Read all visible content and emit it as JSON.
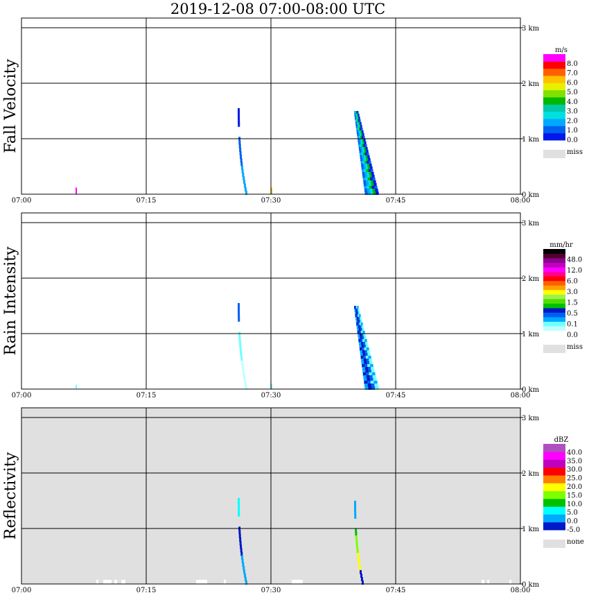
{
  "title": "2019-12-08   07:00-08:00 UTC",
  "chart_data": [
    {
      "type": "heatmap",
      "ylabel": "Fall Velocity",
      "x_ticks": [
        "07:00",
        "07:15",
        "07:30",
        "07:45",
        "08:00"
      ],
      "y_ticks": [
        "0 km",
        "1 km",
        "2 km",
        "3 km"
      ],
      "ylim_km": [
        0,
        3
      ],
      "background": "#ffffff",
      "colorbar": {
        "unit": "m/s",
        "colors": [
          "#0018e8",
          "#0060f0",
          "#00a8ff",
          "#00e0e0",
          "#00c8a8",
          "#00b800",
          "#80e000",
          "#e8f000",
          "#ffc000",
          "#ff6000",
          "#ff0000",
          "#ff00ff"
        ],
        "labels": [
          "0.0",
          "1.0",
          "2.0",
          "3.0",
          "4.0",
          "5.0",
          "6.0",
          "7.0",
          "8.0"
        ],
        "miss_label": "miss"
      },
      "echoes": [
        {
          "time": "07:06.5",
          "top_km": 0.12,
          "bottom_km": 0.0,
          "color": "#ff00ff"
        },
        {
          "time": "07:26",
          "top_km": 1.55,
          "bottom_km": 0.0,
          "colors": [
            "#0018e8",
            "#0060f0",
            "#00a8ff"
          ]
        },
        {
          "time": "07:30",
          "top_km": 0.12,
          "bottom_km": 0.0,
          "color": "#ffc000"
        },
        {
          "time": "07:40",
          "top_km": 1.5,
          "bottom_km": 0.0,
          "colors": [
            "#0060f0",
            "#00a8ff",
            "#00e0e0",
            "#00b800",
            "#0018e8"
          ]
        }
      ]
    },
    {
      "type": "heatmap",
      "ylabel": "Rain Intensity",
      "x_ticks": [
        "07:00",
        "07:15",
        "07:30",
        "07:45",
        "08:00"
      ],
      "y_ticks": [
        "0 km",
        "1 km",
        "2 km",
        "3 km"
      ],
      "ylim_km": [
        0,
        3
      ],
      "background": "#ffffff",
      "colorbar": {
        "unit": "mm/hr",
        "colors": [
          "#ffffff",
          "#c0ffff",
          "#70ffff",
          "#00a8ff",
          "#0060f0",
          "#0018c8",
          "#00c000",
          "#50e000",
          "#a0f050",
          "#ffff00",
          "#ffa000",
          "#ff6000",
          "#ff0000",
          "#ff0090",
          "#ff00ff",
          "#c000c0",
          "#900090",
          "#500030",
          "#000000"
        ],
        "labels": [
          "0.0",
          "0.1",
          "0.5",
          "1.5",
          "3.0",
          "6.0",
          "12.0",
          "48.0"
        ],
        "miss_label": "miss"
      },
      "echoes": [
        {
          "time": "07:06.5",
          "top_km": 0.08,
          "bottom_km": 0.0,
          "color": "#70ffff"
        },
        {
          "time": "07:26",
          "top_km": 1.55,
          "bottom_km": 0.0,
          "colors": [
            "#0060f0",
            "#70ffff",
            "#c0ffff"
          ]
        },
        {
          "time": "07:30",
          "top_km": 0.1,
          "bottom_km": 0.0,
          "color": "#70ffff"
        },
        {
          "time": "07:40",
          "top_km": 1.5,
          "bottom_km": 0.0,
          "colors": [
            "#00a8ff",
            "#0018c8",
            "#0060f0",
            "#70ffff"
          ]
        }
      ]
    },
    {
      "type": "heatmap",
      "ylabel": "Reflectivity",
      "x_ticks": [
        "07:00",
        "07:15",
        "07:30",
        "07:45",
        "08:00"
      ],
      "y_ticks": [
        "0 km",
        "1 km",
        "2 km",
        "3 km"
      ],
      "ylim_km": [
        0,
        3
      ],
      "background": "#e0e0e0",
      "colorbar": {
        "unit": "dBZ",
        "colors": [
          "#0018c8",
          "#00a8ff",
          "#00ffff",
          "#00c000",
          "#80ff00",
          "#ffff00",
          "#ff8000",
          "#ff0000",
          "#c000c0",
          "#ff00ff",
          "#b050c0"
        ],
        "labels": [
          "-5.0",
          "0.0",
          "5.0",
          "10.0",
          "15.0",
          "20.0",
          "25.0",
          "30.0",
          "35.0",
          "40.0"
        ],
        "miss_label": "none"
      },
      "echoes": [
        {
          "time": "07:26",
          "top_km": 1.55,
          "bottom_km": 0.0,
          "colors": [
            "#00ffff",
            "#0018c8",
            "#00a8ff"
          ]
        },
        {
          "time": "07:40",
          "top_km": 1.5,
          "bottom_km": 0.0,
          "colors": [
            "#00a8ff",
            "#00c000",
            "#80ff00",
            "#ffff00",
            "#0018c8"
          ]
        }
      ]
    }
  ]
}
